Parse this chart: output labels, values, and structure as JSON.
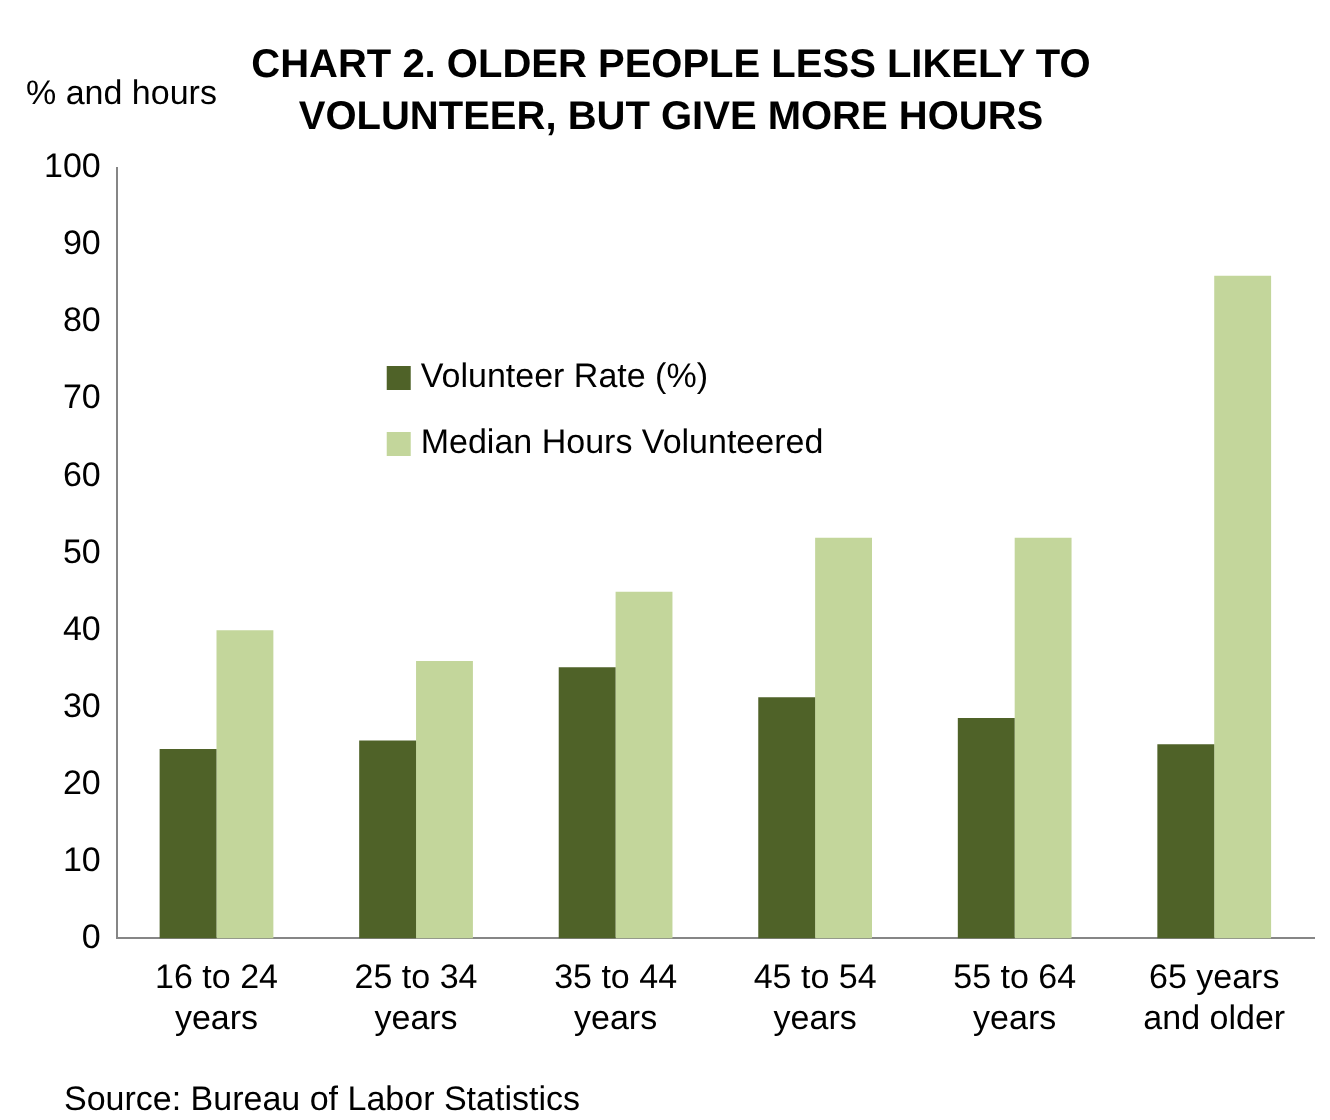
{
  "chart_data": {
    "type": "bar",
    "title": "CHART 2. OLDER PEOPLE LESS LIKELY TO VOLUNTEER, BUT GIVE MORE HOURS",
    "ylabel": "% and hours",
    "categories": [
      "16 to 24 years",
      "25 to 34 years",
      "35 to 44 years",
      "45 to 54 years",
      "55 to 64 years",
      "65 years and older"
    ],
    "series": [
      {
        "name": "Volunteer Rate (%)",
        "color": "#4f6228",
        "values": [
          24.6,
          25.7,
          35.2,
          31.3,
          28.6,
          25.2
        ]
      },
      {
        "name": "Median Hours Volunteered",
        "color": "#c3d69b",
        "values": [
          40,
          36,
          45,
          52,
          52,
          86
        ]
      }
    ],
    "ylim": [
      0,
      100
    ],
    "yticks": [
      0,
      10,
      20,
      30,
      40,
      50,
      60,
      70,
      80,
      90,
      100
    ],
    "grid": false,
    "legend": "top left",
    "annotations": [
      "Source: Bureau of Labor Statistics"
    ]
  }
}
